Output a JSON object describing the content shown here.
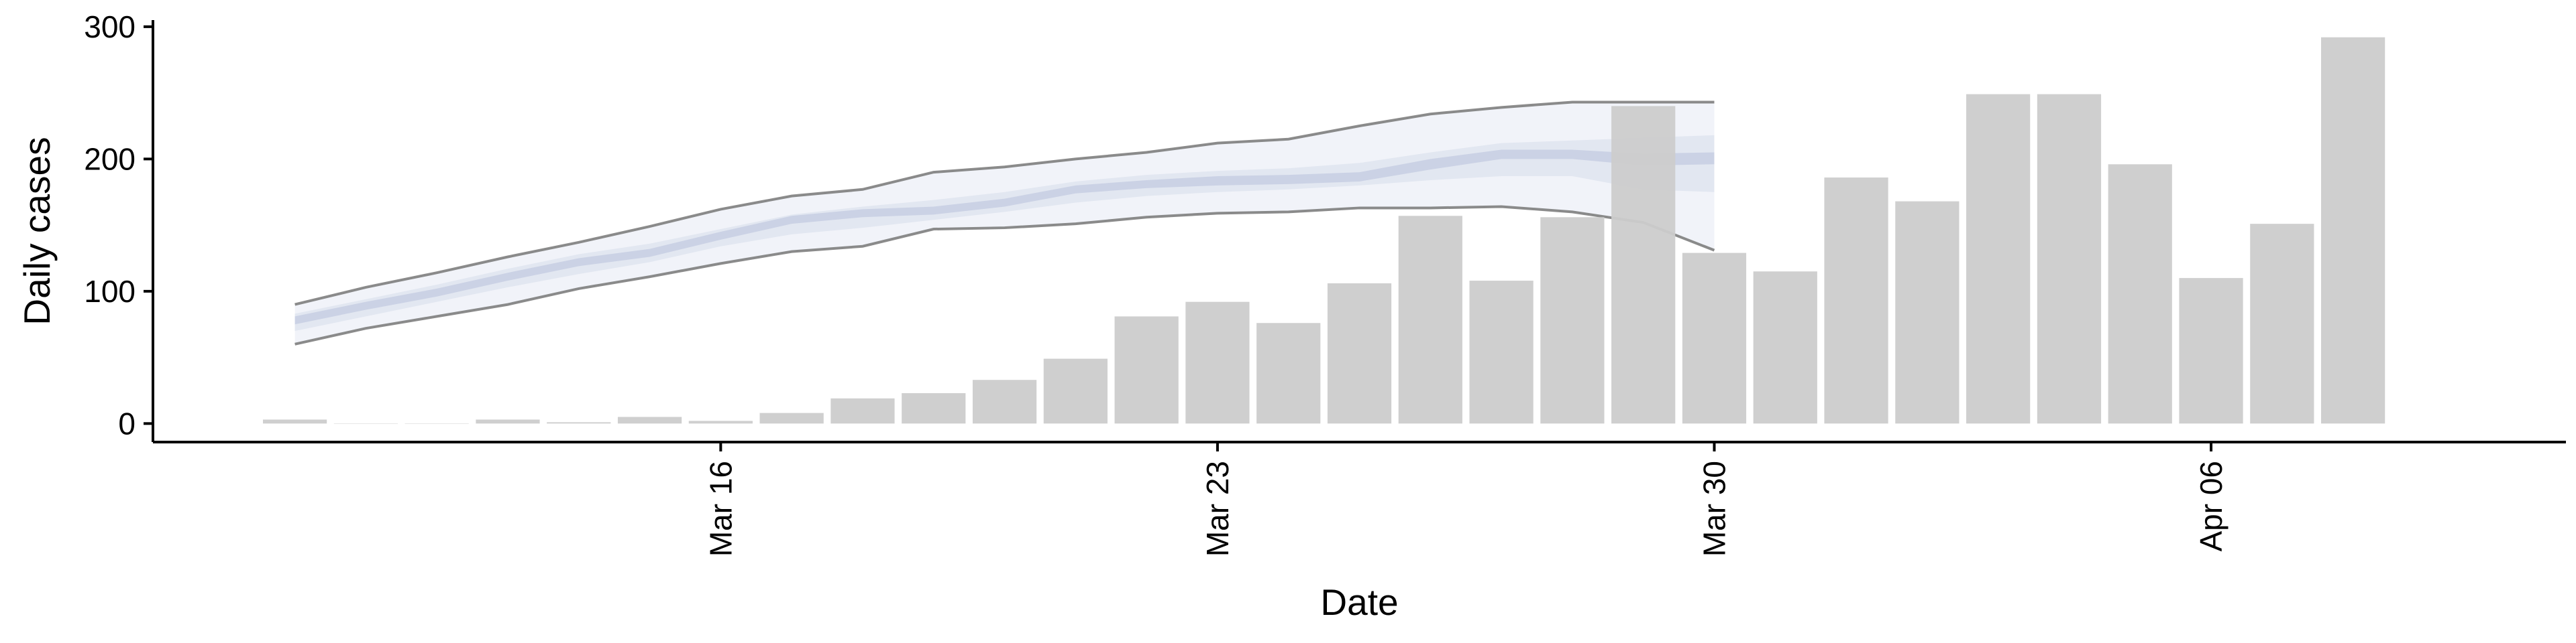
{
  "chart_data": {
    "type": "bar",
    "title": "",
    "xlabel": "Date",
    "ylabel": "Daily cases",
    "ylim": [
      -14,
      305
    ],
    "xlim": [
      "2020-03-08",
      "2020-04-11"
    ],
    "yticks": [
      0,
      100,
      200,
      300
    ],
    "xticks": [
      {
        "date": "2020-03-16",
        "label": "Mar 16"
      },
      {
        "date": "2020-03-23",
        "label": "Mar 23"
      },
      {
        "date": "2020-03-30",
        "label": "Mar 30"
      },
      {
        "date": "2020-04-06",
        "label": "Apr 06"
      }
    ],
    "grid": false,
    "bar_color": "#cccccc",
    "bars": [
      {
        "date": "2020-03-10",
        "value": 3
      },
      {
        "date": "2020-03-11",
        "value": 0
      },
      {
        "date": "2020-03-12",
        "value": 0
      },
      {
        "date": "2020-03-13",
        "value": 3
      },
      {
        "date": "2020-03-14",
        "value": 1
      },
      {
        "date": "2020-03-15",
        "value": 5
      },
      {
        "date": "2020-03-16",
        "value": 2
      },
      {
        "date": "2020-03-17",
        "value": 8
      },
      {
        "date": "2020-03-18",
        "value": 19
      },
      {
        "date": "2020-03-19",
        "value": 23
      },
      {
        "date": "2020-03-20",
        "value": 33
      },
      {
        "date": "2020-03-21",
        "value": 49
      },
      {
        "date": "2020-03-22",
        "value": 81
      },
      {
        "date": "2020-03-23",
        "value": 92
      },
      {
        "date": "2020-03-24",
        "value": 76
      },
      {
        "date": "2020-03-25",
        "value": 106
      },
      {
        "date": "2020-03-26",
        "value": 157
      },
      {
        "date": "2020-03-27",
        "value": 108
      },
      {
        "date": "2020-03-28",
        "value": 156
      },
      {
        "date": "2020-03-29",
        "value": 240
      },
      {
        "date": "2020-03-30",
        "value": 129
      },
      {
        "date": "2020-03-31",
        "value": 115
      },
      {
        "date": "2020-04-01",
        "value": 186
      },
      {
        "date": "2020-04-02",
        "value": 168
      },
      {
        "date": "2020-04-03",
        "value": 249
      },
      {
        "date": "2020-04-04",
        "value": 249
      },
      {
        "date": "2020-04-05",
        "value": 196
      },
      {
        "date": "2020-04-06",
        "value": 110
      },
      {
        "date": "2020-04-07",
        "value": 151
      },
      {
        "date": "2020-04-08",
        "value": 292
      }
    ],
    "ribbon": {
      "band_colors": [
        "#eef0f7",
        "#dfe3ef",
        "#c6cde2"
      ],
      "band_opacity": [
        0.8,
        0.8,
        0.8
      ],
      "line_color": "#777777",
      "dates": [
        "2020-03-10",
        "2020-03-11",
        "2020-03-12",
        "2020-03-13",
        "2020-03-14",
        "2020-03-15",
        "2020-03-16",
        "2020-03-17",
        "2020-03-18",
        "2020-03-19",
        "2020-03-20",
        "2020-03-21",
        "2020-03-22",
        "2020-03-23",
        "2020-03-24",
        "2020-03-25",
        "2020-03-26",
        "2020-03-27",
        "2020-03-28",
        "2020-03-29",
        "2020-03-30"
      ],
      "lower_90": [
        60,
        72,
        81,
        90,
        102,
        111,
        121,
        130,
        134,
        147,
        148,
        151,
        156,
        159,
        160,
        163,
        163,
        164,
        160,
        152,
        131
      ],
      "upper_90": [
        90,
        103,
        114,
        126,
        137,
        149,
        162,
        172,
        177,
        190,
        194,
        200,
        205,
        212,
        215,
        225,
        234,
        239,
        243,
        243,
        243
      ],
      "lower_50": [
        70,
        81,
        92,
        103,
        113,
        122,
        134,
        143,
        148,
        154,
        160,
        167,
        172,
        175,
        177,
        180,
        184,
        187,
        187,
        177,
        175
      ],
      "upper_50": [
        83,
        94,
        105,
        117,
        128,
        136,
        147,
        158,
        164,
        169,
        175,
        183,
        188,
        191,
        193,
        197,
        205,
        212,
        214,
        216,
        218
      ],
      "lower_20": [
        75,
        86,
        96,
        108,
        119,
        126,
        139,
        151,
        156,
        158,
        164,
        174,
        178,
        180,
        181,
        183,
        192,
        200,
        200,
        195,
        196
      ],
      "upper_20": [
        81,
        92,
        102,
        114,
        125,
        132,
        145,
        157,
        162,
        164,
        170,
        180,
        184,
        187,
        188,
        190,
        200,
        207,
        207,
        204,
        205
      ]
    }
  }
}
